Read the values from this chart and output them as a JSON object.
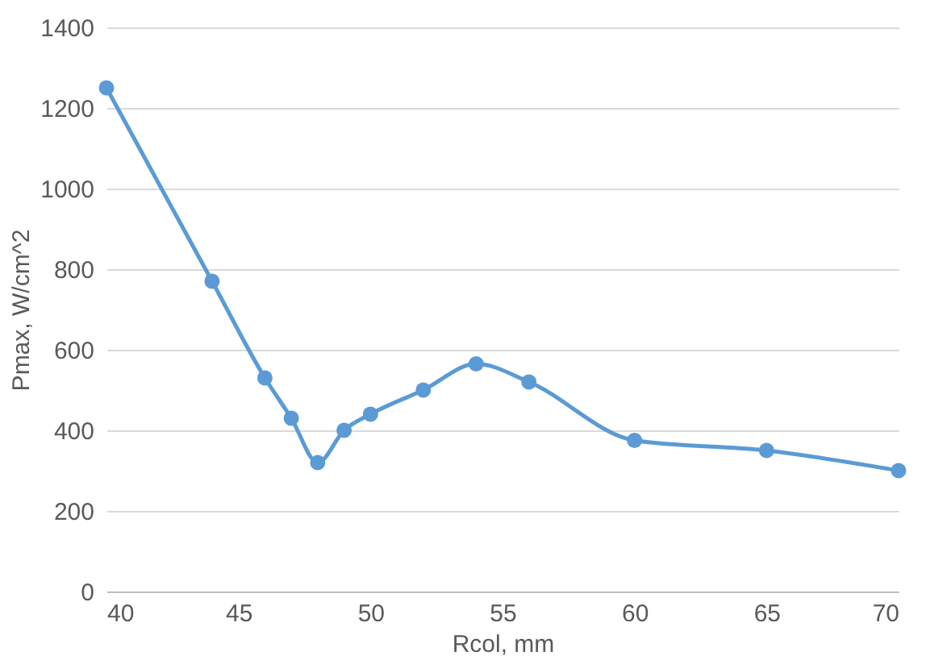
{
  "chart_data": {
    "type": "line",
    "xlabel": "Rcol, mm",
    "ylabel": "Pmax, W/cm^2",
    "x": [
      40,
      44,
      46,
      47,
      48,
      49,
      50,
      52,
      54,
      56,
      60,
      65,
      70
    ],
    "series": [
      {
        "color": "#5b9bd5",
        "values": [
          1250,
          770,
          530,
          430,
          320,
          400,
          440,
          500,
          565,
          520,
          375,
          350,
          300
        ]
      }
    ],
    "xlim": [
      40,
      70
    ],
    "xticks": [
      40,
      45,
      50,
      55,
      60,
      65,
      70
    ],
    "ylim": [
      0,
      1400
    ],
    "yticks": [
      0,
      200,
      400,
      600,
      800,
      1000,
      1200,
      1400
    ],
    "grid": "y",
    "marker": "circle",
    "line_style": "solid",
    "legend": false
  }
}
